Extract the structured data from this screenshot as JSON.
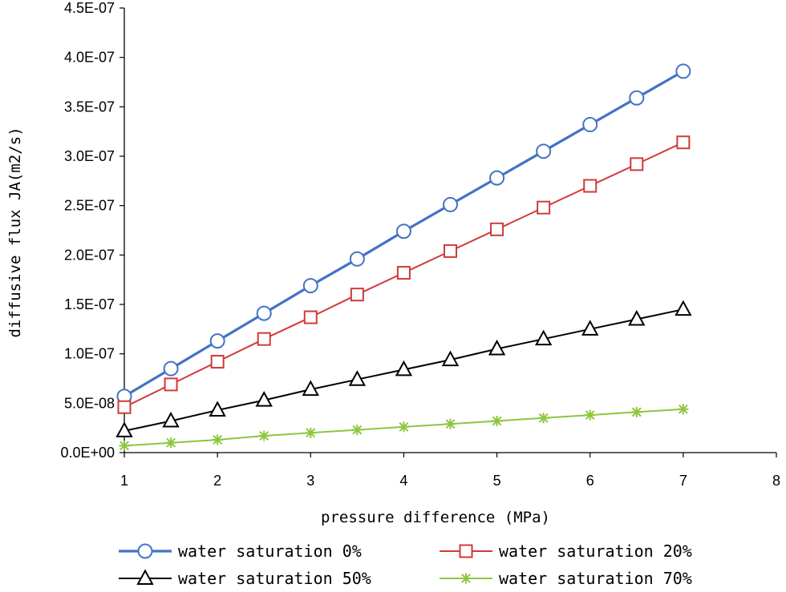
{
  "chart_data": {
    "type": "line",
    "title": "",
    "xlabel": "pressure difference (MPa)",
    "ylabel": "diffusive flux JA(m2/s)",
    "xlim": [
      1,
      8
    ],
    "ylim": [
      0,
      4.5e-07
    ],
    "x_ticks": [
      "1",
      "2",
      "3",
      "4",
      "5",
      "6",
      "7",
      "8"
    ],
    "y_ticks": [
      "0.0E+00",
      "5.0E-08",
      "1.0E-07",
      "1.5E-07",
      "2.0E-07",
      "2.5E-07",
      "3.0E-07",
      "3.5E-07",
      "4.0E-07",
      "4.5E-07"
    ],
    "grid": false,
    "legend_position": "bottom",
    "x": [
      1,
      1.5,
      2,
      2.5,
      3,
      3.5,
      4,
      4.5,
      5,
      5.5,
      6,
      6.5,
      7
    ],
    "series": [
      {
        "name": "water saturation 0%",
        "color": "#4472c4",
        "marker": "circle",
        "values": [
          5.7e-08,
          8.5e-08,
          1.13e-07,
          1.41e-07,
          1.69e-07,
          1.96e-07,
          2.24e-07,
          2.51e-07,
          2.78e-07,
          3.05e-07,
          3.32e-07,
          3.59e-07,
          3.86e-07
        ]
      },
      {
        "name": "water saturation 20%",
        "color": "#d03a3a",
        "marker": "square",
        "values": [
          4.6e-08,
          6.9e-08,
          9.2e-08,
          1.15e-07,
          1.37e-07,
          1.6e-07,
          1.82e-07,
          2.04e-07,
          2.26e-07,
          2.48e-07,
          2.7e-07,
          2.92e-07,
          3.14e-07
        ]
      },
      {
        "name": "water saturation 50%",
        "color": "#000000",
        "marker": "triangle",
        "values": [
          2.2e-08,
          3.2e-08,
          4.3e-08,
          5.3e-08,
          6.4e-08,
          7.4e-08,
          8.4e-08,
          9.4e-08,
          1.05e-07,
          1.15e-07,
          1.25e-07,
          1.35e-07,
          1.45e-07
        ]
      },
      {
        "name": "water saturation 70%",
        "color": "#8dc63f",
        "marker": "star",
        "values": [
          7e-09,
          1e-08,
          1.3e-08,
          1.7e-08,
          2e-08,
          2.3e-08,
          2.6e-08,
          2.9e-08,
          3.2e-08,
          3.5e-08,
          3.8e-08,
          4.1e-08,
          4.4e-08
        ]
      }
    ]
  }
}
